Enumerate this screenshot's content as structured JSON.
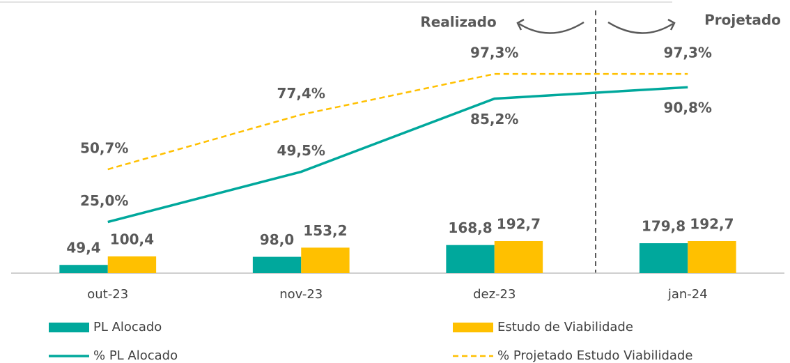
{
  "chart_data": {
    "type": "combo",
    "categories": [
      "out-23",
      "nov-23",
      "dez-23",
      "jan-24"
    ],
    "series": [
      {
        "name": "PL Alocado",
        "kind": "bar",
        "color": "#00A89C",
        "values": [
          49.4,
          98.0,
          168.8,
          179.8
        ],
        "value_labels": [
          "49,4",
          "98,0",
          "168,8",
          "179,8"
        ]
      },
      {
        "name": "Estudo de Viabilidade",
        "kind": "bar",
        "color": "#FFC000",
        "values": [
          100.4,
          153.2,
          192.7,
          192.7
        ],
        "value_labels": [
          "100,4",
          "153,2",
          "192,7",
          "192,7"
        ]
      },
      {
        "name": "% PL Alocado",
        "kind": "line",
        "axis": "y2",
        "color": "#00A89C",
        "values": [
          25.0,
          49.5,
          85.2,
          90.8
        ],
        "value_labels": [
          "25,0%",
          "49,5%",
          "85,2%",
          "90,8%"
        ]
      },
      {
        "name": "% Projetado Estudo Viabilidade",
        "kind": "line",
        "axis": "y2",
        "dashed": true,
        "color": "#FFC000",
        "values": [
          50.7,
          77.4,
          97.3,
          97.3
        ],
        "value_labels": [
          "50,7%",
          "77,4%",
          "97,3%",
          "97,3%"
        ]
      }
    ],
    "ylim": [
      0,
      1600
    ],
    "y2lim": [
      0,
      130
    ],
    "annotations": [
      "Realizado",
      "Projetado"
    ]
  }
}
